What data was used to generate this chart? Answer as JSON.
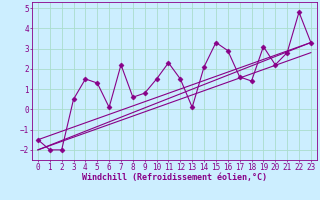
{
  "xlabel": "Windchill (Refroidissement éolien,°C)",
  "scatter_x": [
    0,
    1,
    2,
    3,
    4,
    5,
    6,
    7,
    8,
    9,
    10,
    11,
    12,
    13,
    14,
    15,
    16,
    17,
    18,
    19,
    20,
    21,
    22,
    23
  ],
  "scatter_y": [
    -1.5,
    -2.0,
    -2.0,
    0.5,
    1.5,
    1.3,
    0.1,
    2.2,
    0.6,
    0.8,
    1.5,
    2.3,
    1.5,
    0.1,
    2.1,
    3.3,
    2.9,
    1.6,
    1.4,
    3.1,
    2.2,
    2.8,
    4.8,
    3.3
  ],
  "line1_x": [
    0,
    23
  ],
  "line1_y": [
    -2.0,
    3.3
  ],
  "line2_x": [
    0,
    23
  ],
  "line2_y": [
    -1.5,
    3.3
  ],
  "line3_x": [
    0,
    23
  ],
  "line3_y": [
    -2.0,
    2.8
  ],
  "xlim": [
    -0.5,
    23.5
  ],
  "ylim": [
    -2.5,
    5.3
  ],
  "yticks": [
    -2,
    -1,
    0,
    1,
    2,
    3,
    4,
    5
  ],
  "xticks": [
    0,
    1,
    2,
    3,
    4,
    5,
    6,
    7,
    8,
    9,
    10,
    11,
    12,
    13,
    14,
    15,
    16,
    17,
    18,
    19,
    20,
    21,
    22,
    23
  ],
  "color": "#880088",
  "bg_color": "#cceeff",
  "grid_color": "#aaddcc",
  "marker": "D",
  "marker_size": 2.5,
  "line_width": 0.8,
  "font_size": 5.5
}
